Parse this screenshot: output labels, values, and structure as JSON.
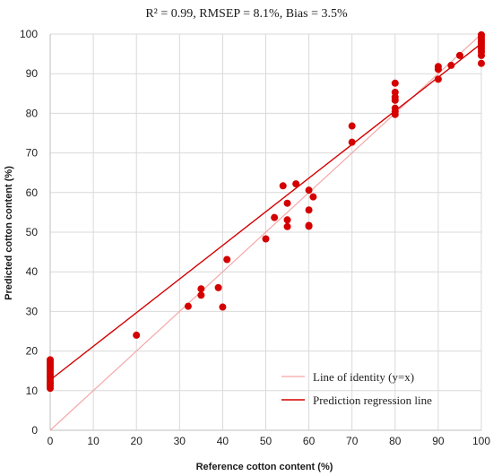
{
  "chart_data": {
    "type": "scatter",
    "title": "R² = 0.99, RMSEP = 8.1%, Bias = 3.5%",
    "xlabel": "Reference cotton content (%)",
    "ylabel": "Predicted cotton content (%)",
    "xlim": [
      0,
      100
    ],
    "ylim": [
      0,
      100
    ],
    "xticks": [
      0,
      10,
      20,
      30,
      40,
      50,
      60,
      70,
      80,
      90,
      100
    ],
    "yticks": [
      0,
      10,
      20,
      30,
      40,
      50,
      60,
      70,
      80,
      90,
      100
    ],
    "grid": true,
    "legend_position": "bottom-right",
    "point_color": "#d40000",
    "series": [
      {
        "points": [
          [
            0,
            10.6
          ],
          [
            0,
            11.2
          ],
          [
            0,
            11.8
          ],
          [
            0,
            12.4
          ],
          [
            0,
            13.0
          ],
          [
            0,
            13.6
          ],
          [
            0,
            14.2
          ],
          [
            0,
            14.8
          ],
          [
            0,
            15.4
          ],
          [
            0,
            16.0
          ],
          [
            0,
            16.6
          ],
          [
            0,
            17.2
          ],
          [
            0,
            17.8
          ],
          [
            20,
            24.0
          ],
          [
            32,
            31.3
          ],
          [
            35,
            34.1
          ],
          [
            35,
            35.7
          ],
          [
            39,
            36.0
          ],
          [
            40,
            31.1
          ],
          [
            41,
            43.1
          ],
          [
            50,
            48.3
          ],
          [
            52,
            53.7
          ],
          [
            54,
            61.7
          ],
          [
            55,
            57.3
          ],
          [
            55,
            53.1
          ],
          [
            55,
            51.4
          ],
          [
            57,
            62.2
          ],
          [
            60,
            60.6
          ],
          [
            60,
            55.6
          ],
          [
            60,
            51.7
          ],
          [
            60,
            51.5
          ],
          [
            61,
            58.9
          ],
          [
            70,
            76.8
          ],
          [
            70,
            72.7
          ],
          [
            80,
            87.6
          ],
          [
            80,
            85.3
          ],
          [
            80,
            84.1
          ],
          [
            80,
            83.3
          ],
          [
            80,
            81.3
          ],
          [
            80,
            80.4
          ],
          [
            80,
            79.7
          ],
          [
            90,
            91.8
          ],
          [
            90,
            91.1
          ],
          [
            90,
            88.6
          ],
          [
            93,
            92.1
          ],
          [
            95,
            94.6
          ],
          [
            100,
            99.8
          ],
          [
            100,
            99.2
          ],
          [
            100,
            98.6
          ],
          [
            100,
            98.0
          ],
          [
            100,
            97.4
          ],
          [
            100,
            96.8
          ],
          [
            100,
            96.2
          ],
          [
            100,
            95.5
          ],
          [
            100,
            94.6
          ],
          [
            100,
            92.6
          ]
        ]
      },
      {
        "name": "Line of identity (y=x)",
        "type": "line",
        "color": "#f4a8a8",
        "points": [
          [
            0,
            0
          ],
          [
            100,
            100
          ]
        ]
      },
      {
        "name": "Prediction regression line",
        "type": "line",
        "color": "#d40000",
        "points": [
          [
            0,
            12.7
          ],
          [
            100,
            97.6
          ]
        ]
      }
    ]
  }
}
